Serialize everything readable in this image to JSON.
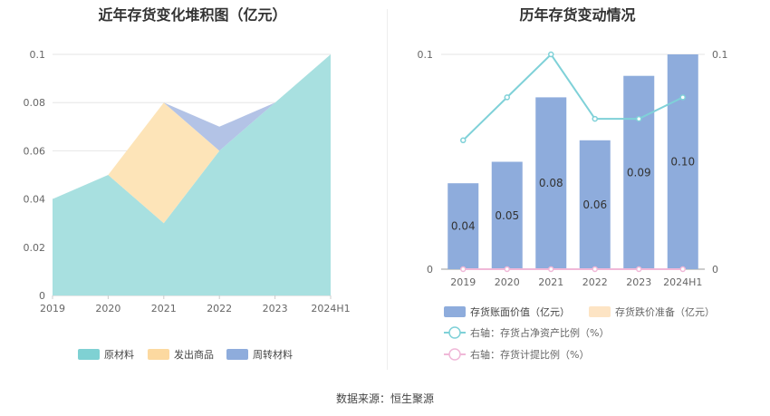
{
  "charts": {
    "left_title": "近年存货变化堆积图（亿元）",
    "right_title": "历年存货变动情况"
  },
  "source": "数据来源：恒生聚源",
  "chart_data": [
    {
      "type": "area",
      "title": "近年存货变化堆积图（亿元）",
      "categories": [
        "2019",
        "2020",
        "2021",
        "2022",
        "2023",
        "2024H1"
      ],
      "ylim": [
        0,
        0.1
      ],
      "yticks": [
        "0",
        "0.02",
        "0.04",
        "0.06",
        "0.08",
        "0.1"
      ],
      "stacked": true,
      "legend_position": "bottom",
      "series": [
        {
          "name": "原材料",
          "values": [
            0.04,
            0.05,
            0.03,
            0.06,
            0.08,
            0.1
          ],
          "color": "#a8e0e0",
          "legend_color": "#7fd1d3"
        },
        {
          "name": "发出商品",
          "values": [
            0,
            0,
            0.05,
            0,
            0,
            0
          ],
          "color": "#fde4b8",
          "legend_color": "#fcd9a0"
        },
        {
          "name": "周转材料",
          "values": [
            null,
            null,
            0,
            0.01,
            0,
            0
          ],
          "color": "#b3c3e6",
          "legend_color": "#8eacdc"
        }
      ]
    },
    {
      "type": "bar",
      "title": "历年存货变动情况",
      "categories": [
        "2019",
        "2020",
        "2021",
        "2022",
        "2023",
        "2024H1"
      ],
      "ylim": [
        0,
        0.1
      ],
      "yticks": [
        "0",
        "0.1"
      ],
      "y2lim": [
        0,
        0.1
      ],
      "y2ticks": [
        "0",
        "0.1"
      ],
      "legend_position": "bottom",
      "series": [
        {
          "name": "存货账面价值（亿元）",
          "type": "bar",
          "values": [
            0.04,
            0.05,
            0.08,
            0.06,
            0.09,
            0.1
          ],
          "labels": [
            "0.04",
            "0.05",
            "0.08",
            "0.06",
            "0.09",
            "0.10"
          ],
          "color": "#8eacdc"
        },
        {
          "name": "存货跌价准备（亿元）",
          "type": "bar",
          "values": [
            0,
            0,
            0,
            0,
            0,
            0
          ],
          "color": "#fde4c4"
        },
        {
          "name": "右轴：存货占净资产比例（%）",
          "type": "line",
          "axis": "right",
          "values": [
            0.06,
            0.08,
            0.1,
            0.07,
            0.07,
            0.08
          ],
          "color": "#7fd1d8"
        },
        {
          "name": "右轴：存货计提比例（%）",
          "type": "line",
          "axis": "right",
          "values": [
            0,
            0,
            0,
            0,
            0,
            0
          ],
          "color": "#f0b8d8"
        }
      ]
    }
  ]
}
